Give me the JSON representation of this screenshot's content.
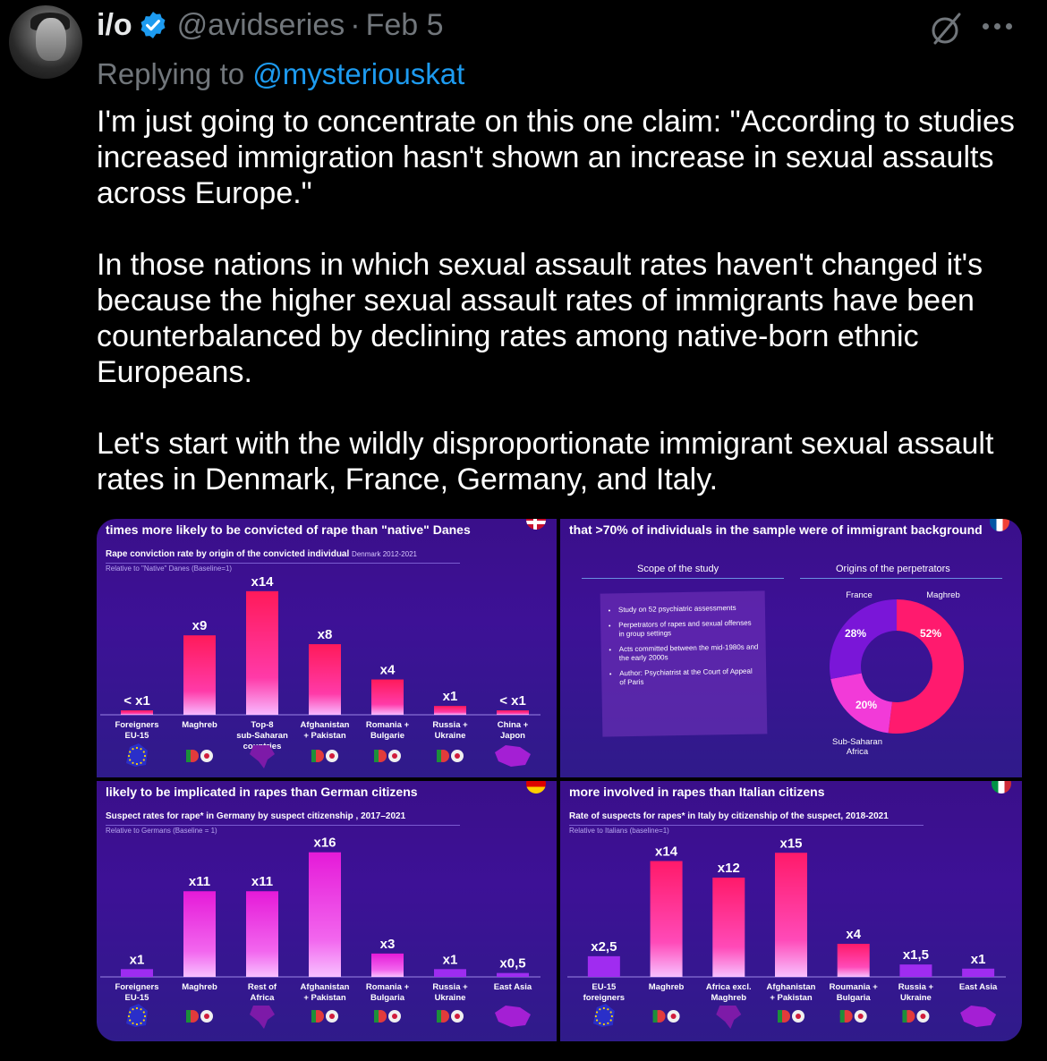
{
  "tweet": {
    "author": {
      "name": "i/o",
      "handle": "@avidseries",
      "date": "Feb 5",
      "verified": true
    },
    "separator": "·",
    "reply_prefix": "Replying to ",
    "reply_to": "@mysteriouskat",
    "paragraphs": [
      "I'm just going to concentrate on this one claim: \"According to studies increased immigration hasn't shown an increase in sexual assaults across Europe.\"",
      "In those nations in which sexual assault rates haven't changed it's because the higher sexual assault rates of immigrants have been counterbalanced by declining rates among native-born ethnic Europeans.",
      "Let's start with the wildly disproportionate immigrant sexual assault rates in Denmark, France, Germany, and Italy."
    ]
  },
  "panels": {
    "denmark": {
      "title": "times more likely to be convicted of rape than \"native\" Danes",
      "subtitle": "Rape conviction rate by origin of the convicted individual",
      "subtitle_small": "Denmark 2012-2021",
      "note": "Relative to \"Native\" Danes (Baseline=1)"
    },
    "france": {
      "title": "that >70% of individuals in the sample were of immigrant background",
      "scope_title": "Scope of the study",
      "origins_title": "Origins of the perpetrators",
      "bullets": [
        "Study on 52 psychiatric assessments",
        "Perpetrators of rapes and sexual offenses in group settings",
        "Acts committed between the mid-1980s and the early 2000s",
        "Author: Psychiatrist at the Court of Appeal of Paris"
      ]
    },
    "germany": {
      "title": "likely to be implicated in rapes than German citizens",
      "subtitle": "Suspect rates for rape* in Germany by suspect citizenship , 2017–2021",
      "note": "Relative to Germans (Baseline = 1)"
    },
    "italy": {
      "title": "more involved in rapes than Italian citizens",
      "subtitle": "Rate of suspects for rapes* in Italy by citizenship of the suspect, 2018-2021",
      "note": "Relative to Italians (baseline=1)"
    }
  },
  "chart_data": [
    {
      "type": "bar",
      "id": "denmark",
      "categories": [
        "Foreigners EU-15",
        "Maghreb",
        "Top-8 sub-Saharan countries",
        "Afghanistan + Pakistan",
        "Romania + Bulgarie",
        "Russia + Ukraine",
        "China + Japon"
      ],
      "values": [
        0.5,
        9,
        14,
        8,
        4,
        1,
        0.5
      ],
      "labels": [
        "< x1",
        "x9",
        "x14",
        "x8",
        "x4",
        "x1",
        "< x1"
      ],
      "ylim": [
        0,
        15
      ]
    },
    {
      "type": "pie",
      "id": "france",
      "categories": [
        "Maghreb",
        "Sub-Saharan Africa",
        "France"
      ],
      "values": [
        52,
        20,
        28
      ],
      "labels": [
        "52%",
        "20%",
        "28%"
      ]
    },
    {
      "type": "bar",
      "id": "germany",
      "categories": [
        "Foreigners EU-15",
        "Maghreb",
        "Rest of Africa",
        "Afghanistan + Pakistan",
        "Romania + Bulgaria",
        "Russia + Ukraine",
        "East Asia"
      ],
      "values": [
        1,
        11,
        11,
        16,
        3,
        1,
        0.5
      ],
      "labels": [
        "x1",
        "x11",
        "x11",
        "x16",
        "x3",
        "x1",
        "x0,5"
      ],
      "ylim": [
        0,
        17
      ]
    },
    {
      "type": "bar",
      "id": "italy",
      "categories": [
        "EU-15 foreigners",
        "Maghreb",
        "Africa excl. Maghreb",
        "Afghanistan + Pakistan",
        "Roumania + Bulgaria",
        "Russia + Ukraine",
        "East Asia"
      ],
      "values": [
        2.5,
        14,
        12,
        15,
        4,
        1.5,
        1
      ],
      "labels": [
        "x2,5",
        "x14",
        "x12",
        "x15",
        "x4",
        "x1,5",
        "x1"
      ],
      "ylim": [
        0,
        16
      ]
    }
  ],
  "colors": {
    "accent": "#1d9bf0",
    "muted": "#71767b",
    "bar_top": "#ff1a6e",
    "bar_bottom": "#f6a6ff",
    "bar_purple": "#a02cf0"
  },
  "icons": [
    "verified-badge-icon",
    "slash-circle-icon",
    "more-icon",
    "eu-map-icon",
    "flag-icons",
    "africa-map-icon",
    "asia-map-icon"
  ]
}
